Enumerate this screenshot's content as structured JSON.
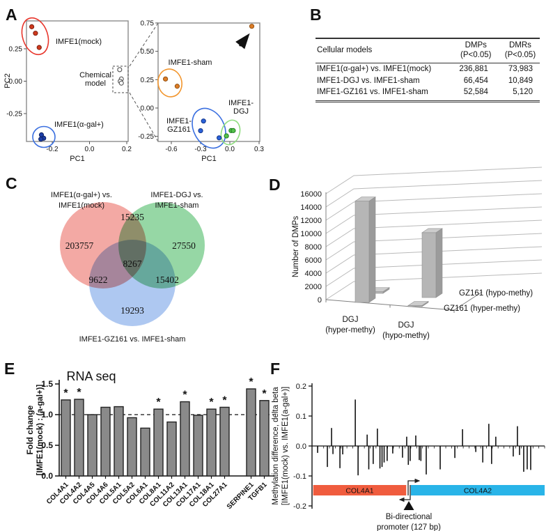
{
  "figure": {
    "panel_labels": {
      "a": "A",
      "b": "B",
      "c": "C",
      "d": "D",
      "e": "E",
      "f": "F"
    }
  },
  "table_b": {
    "headers": [
      [
        "Cellular models"
      ],
      [
        "DMPs",
        "(P<0.05)"
      ],
      [
        "DMRs",
        "(P<0.05)"
      ]
    ],
    "rows": [
      [
        "IMFE1(α-gal+) vs. IMFE1(mock)",
        "236,881",
        "73,983"
      ],
      [
        "IMFE1-DGJ vs. IMFE1-sham",
        "66,454",
        "10,849"
      ],
      [
        "IMFE1-GZ161 vs. IMFE1-sham",
        "52,584",
        "5,120"
      ]
    ]
  },
  "chart_data": [
    {
      "id": "pca_left",
      "type": "scatter",
      "xlabel": "PC1",
      "ylabel": "PC2",
      "x_ticks": [
        -0.2,
        0.0,
        0.2
      ],
      "y_ticks": [
        0.25,
        0.0,
        -0.25
      ],
      "xlim": [
        -0.34,
        0.21
      ],
      "ylim": [
        -0.46,
        0.47
      ],
      "groups": [
        {
          "name": "IMFE1(mock)",
          "color": "#cf3a1e",
          "outline": "#7d1d0d",
          "ellipse_color": "#e8352b",
          "points": [
            [
              -0.31,
              0.42
            ],
            [
              -0.29,
              0.37
            ],
            [
              -0.27,
              0.26
            ]
          ]
        },
        {
          "name": "IMFE1(α-gal+)",
          "color": "#1d3ea8",
          "outline": "#0e2263",
          "ellipse_color": "#3a6fe0",
          "points": [
            [
              -0.258,
              -0.414
            ],
            [
              -0.246,
              -0.44
            ],
            [
              -0.261,
              -0.447
            ]
          ]
        },
        {
          "name": "Chemical model",
          "style": "open",
          "points": [
            [
              0.162,
              0.089
            ],
            [
              0.171,
              0.017
            ],
            [
              0.165,
              -0.001
            ],
            [
              0.171,
              -0.015
            ]
          ]
        }
      ]
    },
    {
      "id": "pca_right",
      "type": "scatter",
      "xlabel": "PC1",
      "x_ticks": [
        -0.6,
        -0.3,
        0.0,
        0.3
      ],
      "y_ticks": [
        0.75,
        0.5,
        0.25,
        0.0,
        -0.25
      ],
      "xlim": [
        -0.72,
        0.31
      ],
      "ylim": [
        -0.3,
        0.75
      ],
      "groups": [
        {
          "name": "IMFE1-sham",
          "color": "#dd7d27",
          "outline": "#94500f",
          "ellipse_color": "#f2962e",
          "points": [
            [
              -0.66,
              0.256
            ],
            [
              -0.54,
              0.192
            ]
          ]
        },
        {
          "name": "IMFE1-GZ161",
          "color": "#2b62d9",
          "outline": "#123488",
          "ellipse_color": "#3a6fe0",
          "points": [
            [
              -0.27,
              -0.115
            ],
            [
              -0.3,
              -0.2
            ],
            [
              -0.11,
              -0.263
            ]
          ]
        },
        {
          "name": "IMFE1-DGJ",
          "color": "#54c24a",
          "outline": "#1d7a1d",
          "ellipse_color": "#90dd80",
          "points": [
            [
              -0.035,
              -0.246
            ],
            [
              0.013,
              -0.199
            ],
            [
              0.035,
              -0.199
            ]
          ]
        },
        {
          "name": "outlier-sample",
          "color": "#dd7d27",
          "outline": "#94500f",
          "arrow": true,
          "points": [
            [
              0.225,
              0.721
            ]
          ]
        }
      ]
    },
    {
      "id": "venn_dmps",
      "type": "venn",
      "sets": [
        {
          "label_lines": [
            "IMFE1(α-gal+) vs.",
            "IMFE1(mock)"
          ],
          "label_color": "#e84c3d",
          "fill": "#F2A09A",
          "unique": "203757"
        },
        {
          "label_lines": [
            "IMFE1-DGJ vs.",
            "IMFE1-sham"
          ],
          "label_color": "#33b373",
          "fill": "#8BD39B",
          "unique": "27550"
        },
        {
          "label_lines": [
            "IMFE1-GZ161 vs. IMFE1-sham"
          ],
          "label_color": "#2e6bd8",
          "fill": "#A5C2F0",
          "unique": "19293"
        }
      ],
      "overlaps": {
        "ab": "15235",
        "ac": "9622",
        "bc": "15402",
        "abc": "8267"
      }
    },
    {
      "id": "dmps_3d",
      "type": "bar3d",
      "ylabel": "Number of DMPs",
      "ylim": [
        0,
        16000
      ],
      "ytick_step": 2000,
      "categories": [
        [
          "DGJ",
          "(hyper-methy)"
        ],
        [
          "DGJ",
          "(hypo-methy)"
        ]
      ],
      "series": [
        {
          "name": "GZ161 (hyper-methy)",
          "values": [
            15300,
            150
          ]
        },
        {
          "name": "GZ161 (hypo-methy)",
          "values": [
            250,
            9800
          ]
        }
      ]
    },
    {
      "id": "rnaseq",
      "type": "bar",
      "title": "RNA seq",
      "ylabel_lines": [
        "Fold change",
        "[IMFE1(mock) : (a-gal+)]"
      ],
      "ylim": [
        0,
        1.5
      ],
      "y_ticks": [
        0.0,
        0.5,
        1.0,
        1.5
      ],
      "ref_line": 1.0,
      "categories": [
        "COL4A1",
        "COL4A2",
        "COL4A5",
        "COL4A6",
        "COL5A1",
        "COL5A2",
        "COL6A1",
        "COL8A1",
        "COL11A2",
        "COL13A1",
        "COL17A1",
        "COL18A1",
        "COL27A1",
        "SERPINE1",
        "TGFB1"
      ],
      "values": [
        1.24,
        1.25,
        1.0,
        1.12,
        1.13,
        0.95,
        0.78,
        1.09,
        0.88,
        1.21,
        0.99,
        1.09,
        1.12,
        1.42,
        1.23
      ],
      "significant": [
        true,
        true,
        false,
        false,
        false,
        false,
        false,
        true,
        false,
        true,
        false,
        true,
        true,
        true,
        true
      ],
      "bar_color": "#8a8a8a"
    },
    {
      "id": "methylation",
      "type": "needle",
      "ylabel_lines": [
        "Methylation difference, delta beta",
        "[IMFE1(mock) vs. IMFE1(a-gal+)]"
      ],
      "ylim": [
        -0.2,
        0.2
      ],
      "y_ticks": [
        0.2,
        0.1,
        0.0,
        -0.1,
        -0.2
      ],
      "spikes": [
        [
          2.4,
          -0.023
        ],
        [
          6.6,
          -0.07
        ],
        [
          8.4,
          0.06
        ],
        [
          9.0,
          -0.027
        ],
        [
          12.0,
          -0.074
        ],
        [
          13.2,
          -0.028
        ],
        [
          18.6,
          0.155
        ],
        [
          19.8,
          -0.098
        ],
        [
          23.7,
          0.038
        ],
        [
          24.4,
          -0.078
        ],
        [
          26.3,
          -0.06
        ],
        [
          28.1,
          0.058
        ],
        [
          29.2,
          -0.075
        ],
        [
          30.1,
          -0.07
        ],
        [
          31.0,
          -0.055
        ],
        [
          32.3,
          -0.05
        ],
        [
          34.7,
          -0.025
        ],
        [
          38.9,
          -0.039
        ],
        [
          40.7,
          0.031
        ],
        [
          41.4,
          -0.063
        ],
        [
          42.2,
          -0.05
        ],
        [
          44.6,
          0.035
        ],
        [
          46.1,
          -0.047
        ],
        [
          46.8,
          -0.05
        ],
        [
          49.1,
          -0.095
        ],
        [
          55.1,
          -0.078
        ],
        [
          61.4,
          -0.04
        ],
        [
          64.7,
          0.056
        ],
        [
          70.4,
          -0.02
        ],
        [
          73.4,
          -0.055
        ],
        [
          76.0,
          0.074
        ],
        [
          77.2,
          -0.06
        ],
        [
          79.0,
          0.031
        ],
        [
          86.5,
          -0.035
        ],
        [
          88.3,
          0.066
        ],
        [
          89.2,
          -0.03
        ],
        [
          91.0,
          -0.086
        ],
        [
          92.5,
          -0.078
        ],
        [
          94.0,
          -0.08
        ]
      ],
      "genes": [
        {
          "name": "COL4A1",
          "color": "#f05c3e",
          "span_pct": [
            0.5,
            40.5
          ]
        },
        {
          "name": "COL4A2",
          "color": "#29b4e8",
          "span_pct": [
            42.5,
            100
          ]
        }
      ],
      "promoter": {
        "label_lines": [
          "Bi-directional",
          "promoter (127 bp)"
        ],
        "x_pct": 41.5
      }
    }
  ]
}
